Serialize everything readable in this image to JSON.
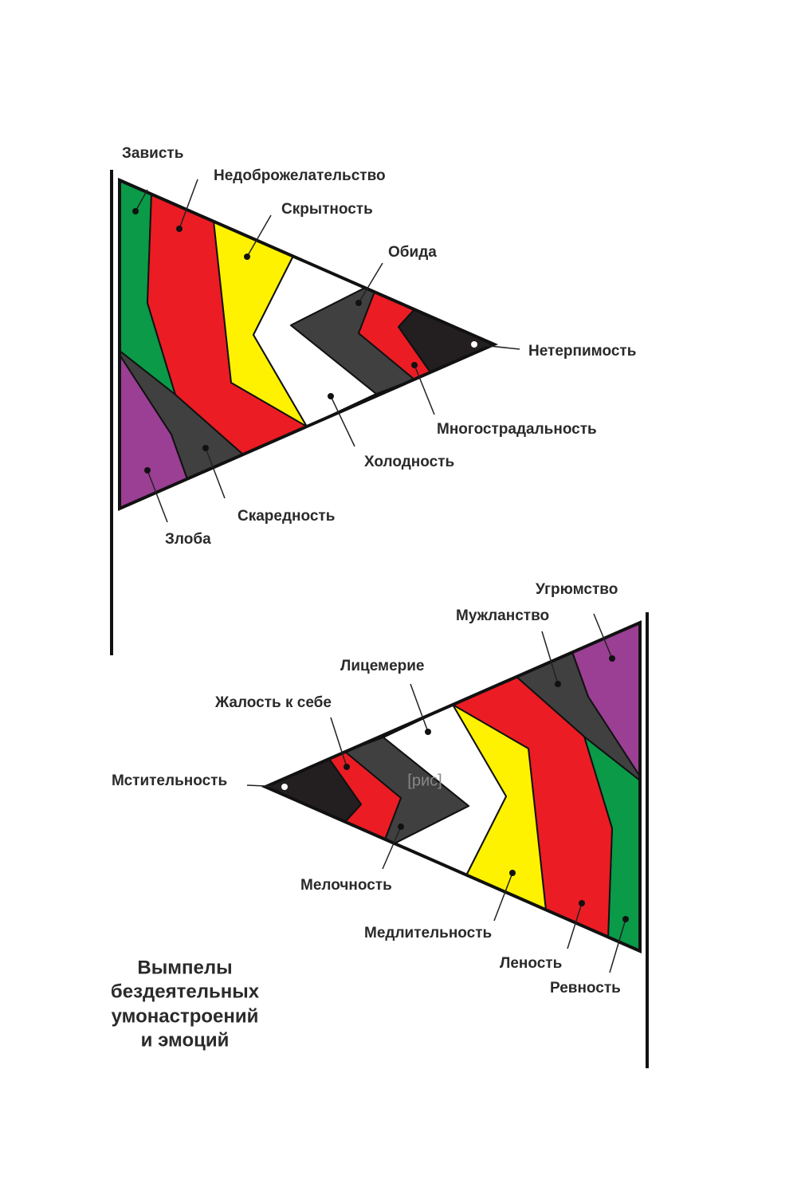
{
  "pennant_top": {
    "labels": [
      "Зависть",
      "Недоброжелательство",
      "Скрытность",
      "Обида",
      "Нетерпимость",
      "Многострадальность",
      "Холодность",
      "Скаредность",
      "Злоба"
    ]
  },
  "pennant_bottom": {
    "labels": [
      "Угрюмство",
      "Мужланство",
      "Лицемерие",
      "Жалость к себе",
      "Мстительность",
      "Мелочность",
      "Медлительность",
      "Леность",
      "Ревность"
    ]
  },
  "watermark": "[рис]",
  "caption": [
    "Вымпелы",
    "бездеятельных",
    "умонастроений",
    "и эмоций"
  ]
}
